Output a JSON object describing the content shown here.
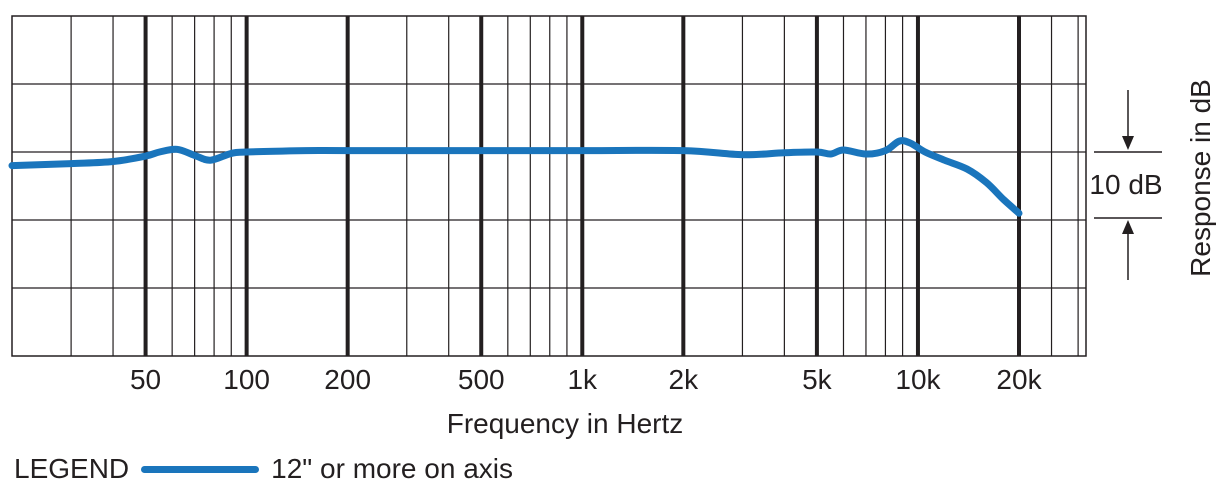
{
  "chart_data": {
    "type": "line",
    "title": "",
    "xlabel": "Frequency in Hertz",
    "ylabel": "Response in dB",
    "x_scale": "log",
    "xlim": [
      20,
      20000
    ],
    "x_ticks": [
      {
        "value": 50,
        "label": "50"
      },
      {
        "value": 100,
        "label": "100"
      },
      {
        "value": 200,
        "label": "200"
      },
      {
        "value": 500,
        "label": "500"
      },
      {
        "value": 1000,
        "label": "1k"
      },
      {
        "value": 2000,
        "label": "2k"
      },
      {
        "value": 5000,
        "label": "5k"
      },
      {
        "value": 10000,
        "label": "10k"
      },
      {
        "value": 20000,
        "label": "20k"
      }
    ],
    "scale_marker": {
      "label": "10 dB",
      "span_db": 10
    },
    "grid": true,
    "legend": {
      "prefix": "LEGEND",
      "position": "bottom-left"
    },
    "series": [
      {
        "name": "12\" or more on axis",
        "color": "#1a75bc",
        "points": [
          [
            20,
            -2
          ],
          [
            30,
            -1.7
          ],
          [
            40,
            -1.4
          ],
          [
            50,
            -0.6
          ],
          [
            55,
            0
          ],
          [
            62,
            0.4
          ],
          [
            70,
            -0.5
          ],
          [
            78,
            -1.2
          ],
          [
            90,
            -0.2
          ],
          [
            100,
            0
          ],
          [
            150,
            0.2
          ],
          [
            200,
            0.2
          ],
          [
            500,
            0.2
          ],
          [
            1000,
            0.2
          ],
          [
            2000,
            0.2
          ],
          [
            3000,
            -0.4
          ],
          [
            4000,
            -0.1
          ],
          [
            5000,
            0
          ],
          [
            5500,
            -0.3
          ],
          [
            6000,
            0.3
          ],
          [
            7000,
            -0.3
          ],
          [
            8000,
            0.2
          ],
          [
            8800,
            1.6
          ],
          [
            9500,
            1.3
          ],
          [
            10500,
            0
          ],
          [
            12000,
            -1.2
          ],
          [
            14000,
            -2.5
          ],
          [
            16000,
            -4.5
          ],
          [
            18000,
            -7
          ],
          [
            20000,
            -9
          ]
        ]
      }
    ]
  }
}
